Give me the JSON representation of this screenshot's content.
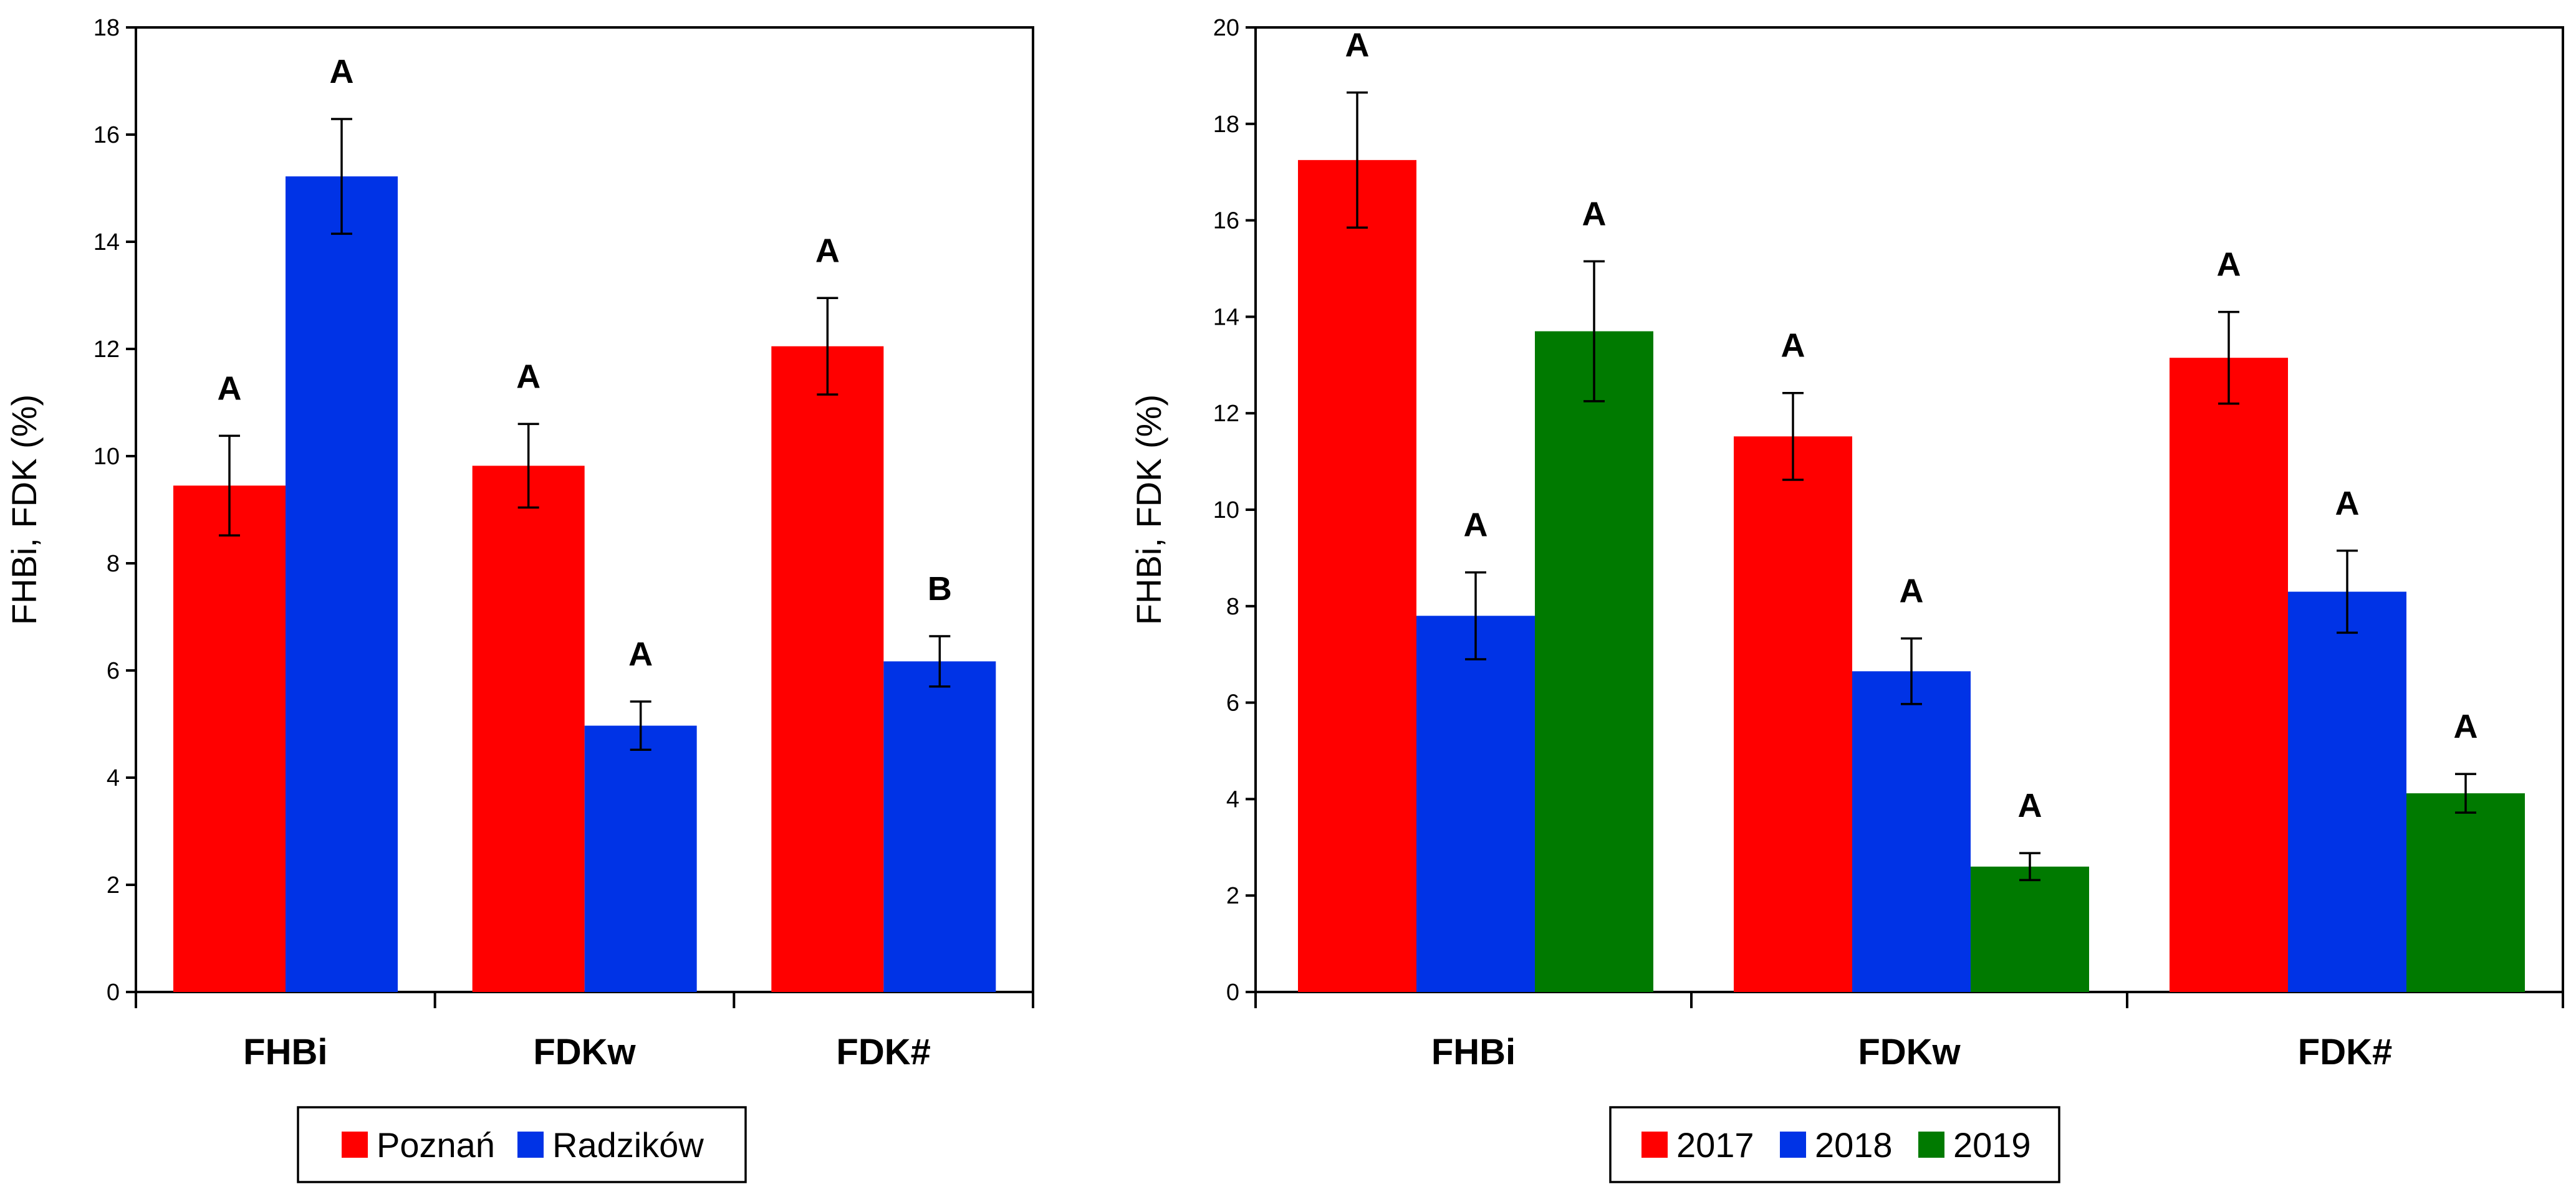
{
  "chart_data": [
    {
      "type": "bar",
      "ylabel": "FHBi, FDK (%)",
      "ylim": [
        0,
        18
      ],
      "yticks": [
        0,
        2,
        4,
        6,
        8,
        10,
        12,
        14,
        16,
        18
      ],
      "categories": [
        "FHBi",
        "FDKw",
        "FDK#"
      ],
      "legend_position": "bottom-center",
      "series": [
        {
          "name": "Poznań",
          "color": "#ff0000",
          "values": [
            9.45,
            9.82,
            12.05
          ],
          "errors": [
            0.93,
            0.78,
            0.9
          ],
          "labels": [
            "A",
            "A",
            "A"
          ]
        },
        {
          "name": "Radzików",
          "color": "#0033e6",
          "values": [
            15.22,
            4.97,
            6.17
          ],
          "errors": [
            1.07,
            0.45,
            0.47
          ],
          "labels": [
            "A",
            "A",
            "B"
          ]
        }
      ]
    },
    {
      "type": "bar",
      "ylabel": "FHBi, FDK (%)",
      "ylim": [
        0,
        20
      ],
      "yticks": [
        0,
        2,
        4,
        6,
        8,
        10,
        12,
        14,
        16,
        18,
        20
      ],
      "categories": [
        "FHBi",
        "FDKw",
        "FDK#"
      ],
      "legend_position": "bottom-center",
      "series": [
        {
          "name": "2017",
          "color": "#ff0000",
          "values": [
            17.25,
            11.52,
            13.15
          ],
          "errors": [
            1.4,
            0.9,
            0.95
          ],
          "labels": [
            "A",
            "A",
            "A"
          ]
        },
        {
          "name": "2018",
          "color": "#0033e6",
          "values": [
            7.8,
            6.65,
            8.3
          ],
          "errors": [
            0.9,
            0.68,
            0.85
          ],
          "labels": [
            "A",
            "A",
            "A"
          ]
        },
        {
          "name": "2019",
          "color": "#007a00",
          "values": [
            13.7,
            2.6,
            4.12
          ],
          "errors": [
            1.45,
            0.28,
            0.4
          ],
          "labels": [
            "A",
            "A",
            "A"
          ]
        }
      ]
    }
  ]
}
